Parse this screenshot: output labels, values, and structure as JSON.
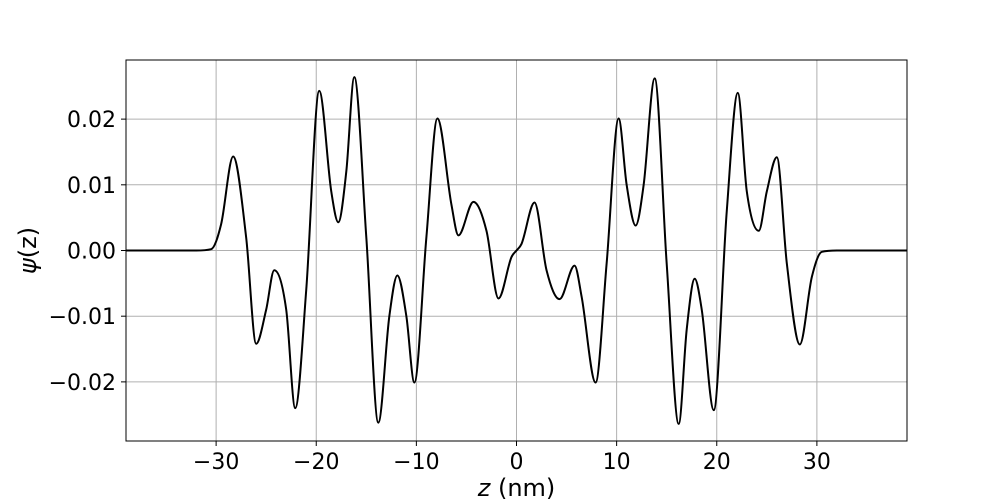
{
  "chart_data": {
    "type": "line",
    "title": "",
    "xlabel_italic": "z",
    "xlabel_unit": " (nm)",
    "ylabel_symbol": "ψ",
    "ylabel_arg": "(z)",
    "xlim": [
      -39,
      39
    ],
    "ylim": [
      -0.029,
      0.029
    ],
    "grid": true,
    "xticks": [
      -30,
      -20,
      -10,
      0,
      10,
      20,
      30
    ],
    "xtick_labels": [
      "−30",
      "−20",
      "−10",
      "0",
      "10",
      "20",
      "30"
    ],
    "yticks": [
      -0.02,
      -0.01,
      0.0,
      0.01,
      0.02
    ],
    "ytick_labels": [
      "−0.02",
      "−0.01",
      "0.00",
      "0.01",
      "0.02"
    ],
    "series": [
      {
        "color": "#000000",
        "x": [
          -39,
          -32,
          -30.5,
          -29.5,
          -28.3,
          -27,
          -26,
          -25,
          -24.2,
          -23,
          -22.1,
          -21,
          -19.7,
          -18.5,
          -17.8,
          -17,
          -16.2,
          -15,
          -13.8,
          -12.7,
          -11.9,
          -11,
          -10.2,
          -9,
          -7.9,
          -6.5,
          -5.8,
          -4.3,
          -3,
          -1.8,
          -0.5,
          0,
          0.5,
          1.8,
          3,
          4.3,
          5.8,
          6.5,
          7.9,
          9,
          10.2,
          11,
          11.9,
          12.7,
          13.8,
          15,
          16.2,
          17,
          17.8,
          18.5,
          19.7,
          21,
          22.1,
          23,
          24.2,
          25,
          26,
          27,
          28.3,
          29.5,
          30.5,
          32,
          39
        ],
        "y": [
          0,
          0,
          0.0002,
          0.004,
          0.0143,
          0.002,
          -0.0142,
          -0.009,
          -0.003,
          -0.009,
          -0.024,
          -0.006,
          0.0243,
          0.009,
          0.0043,
          0.012,
          0.0264,
          0.002,
          -0.0262,
          -0.01,
          -0.0038,
          -0.01,
          -0.0201,
          0.002,
          0.0201,
          0.007,
          0.0023,
          0.0074,
          0.003,
          -0.0073,
          -0.001,
          0,
          0.001,
          0.0073,
          -0.003,
          -0.0074,
          -0.0023,
          -0.007,
          -0.0201,
          -0.002,
          0.0201,
          0.01,
          0.0038,
          0.01,
          0.0262,
          -0.002,
          -0.0264,
          -0.012,
          -0.0043,
          -0.009,
          -0.0243,
          0.006,
          0.024,
          0.009,
          0.003,
          0.009,
          0.0142,
          -0.002,
          -0.0143,
          -0.004,
          -0.0002,
          0,
          0
        ]
      }
    ]
  }
}
